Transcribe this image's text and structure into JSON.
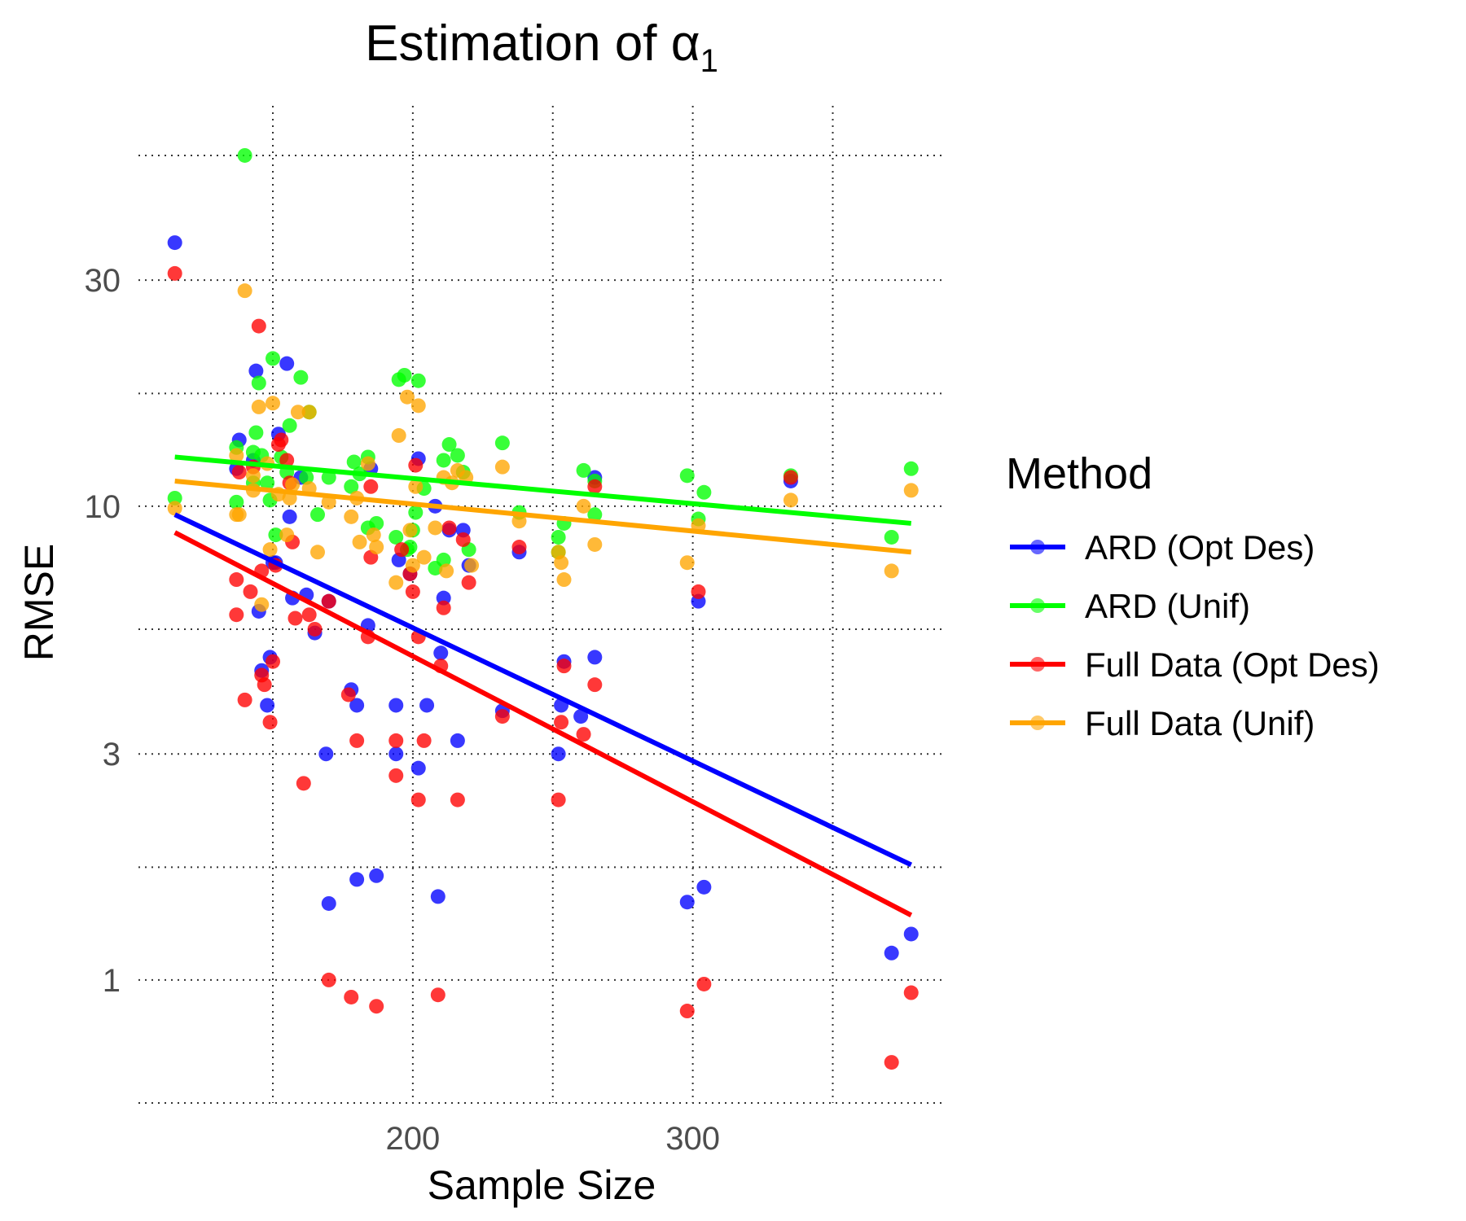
{
  "chart_data": {
    "type": "scatter",
    "title_text": "Estimation of ",
    "title_symbol": "α",
    "title_subscript": "1",
    "xlabel": "Sample Size",
    "ylabel": "RMSE",
    "xlim": [
      102,
      390
    ],
    "ylim": [
      0.55,
      70
    ],
    "y_scale": "log",
    "grid": true,
    "x_ticks": [
      200,
      300
    ],
    "x_tick_labels": [
      "200",
      "300"
    ],
    "x_minor_gridlines": [
      150,
      250,
      350
    ],
    "y_ticks": [
      1,
      3,
      10,
      30
    ],
    "y_tick_labels": [
      "1",
      "3",
      "10",
      "30"
    ],
    "y_minor_gridlines": [
      0.55,
      1.73,
      5.5,
      17.3,
      55
    ],
    "legend_title": "Method",
    "legend_position": "right",
    "series": [
      {
        "name": "ARD (Opt Des)",
        "color": "#0000ff",
        "trend": [
          [
            115,
            9.6
          ],
          [
            378,
            1.75
          ]
        ],
        "points": [
          [
            115,
            36
          ],
          [
            137,
            12.0
          ],
          [
            138,
            13.8
          ],
          [
            143,
            12.5
          ],
          [
            144,
            19.3
          ],
          [
            145,
            6.0
          ],
          [
            146,
            4.5
          ],
          [
            148,
            3.8
          ],
          [
            149,
            4.8
          ],
          [
            150,
            7.6
          ],
          [
            151,
            7.6
          ],
          [
            152,
            14.2
          ],
          [
            155,
            20.0
          ],
          [
            156,
            9.5
          ],
          [
            157,
            6.4
          ],
          [
            160,
            11.5
          ],
          [
            162,
            6.5
          ],
          [
            165,
            5.4
          ],
          [
            169,
            3.0
          ],
          [
            170,
            6.3
          ],
          [
            170,
            1.45
          ],
          [
            178,
            4.1
          ],
          [
            180,
            3.8
          ],
          [
            180,
            1.63
          ],
          [
            184,
            5.6
          ],
          [
            185,
            12.0
          ],
          [
            187,
            1.66
          ],
          [
            194,
            3.8
          ],
          [
            194,
            3.0
          ],
          [
            195,
            7.7
          ],
          [
            199,
            7.2
          ],
          [
            202,
            12.6
          ],
          [
            202,
            2.8
          ],
          [
            205,
            3.8
          ],
          [
            208,
            10.0
          ],
          [
            209,
            1.5
          ],
          [
            210,
            4.9
          ],
          [
            211,
            6.4
          ],
          [
            213,
            8.9
          ],
          [
            216,
            3.2
          ],
          [
            218,
            8.9
          ],
          [
            220,
            7.5
          ],
          [
            232,
            3.7
          ],
          [
            238,
            8.0
          ],
          [
            252,
            3.0
          ],
          [
            253,
            3.8
          ],
          [
            254,
            4.7
          ],
          [
            260,
            3.6
          ],
          [
            265,
            4.8
          ],
          [
            265,
            11.5
          ],
          [
            298,
            1.46
          ],
          [
            302,
            6.3
          ],
          [
            304,
            1.57
          ],
          [
            335,
            11.3
          ],
          [
            371,
            1.14
          ],
          [
            378,
            1.25
          ]
        ]
      },
      {
        "name": "ARD (Unif)",
        "color": "#00ff00",
        "trend": [
          [
            115,
            12.7
          ],
          [
            378,
            9.2
          ]
        ],
        "points": [
          [
            115,
            10.4
          ],
          [
            137,
            10.2
          ],
          [
            137,
            13.3
          ],
          [
            140,
            55
          ],
          [
            143,
            11.2
          ],
          [
            143,
            13.0
          ],
          [
            144,
            14.3
          ],
          [
            145,
            18.2
          ],
          [
            146,
            12.8
          ],
          [
            148,
            11.2
          ],
          [
            149,
            10.3
          ],
          [
            150,
            20.5
          ],
          [
            151,
            8.7
          ],
          [
            153,
            12.7
          ],
          [
            155,
            11.8
          ],
          [
            156,
            14.8
          ],
          [
            160,
            18.7
          ],
          [
            162,
            11.5
          ],
          [
            163,
            15.8
          ],
          [
            166,
            9.6
          ],
          [
            170,
            11.5
          ],
          [
            178,
            11.0
          ],
          [
            179,
            12.4
          ],
          [
            181,
            11.7
          ],
          [
            184,
            12.7
          ],
          [
            184,
            9.0
          ],
          [
            187,
            9.2
          ],
          [
            194,
            8.6
          ],
          [
            195,
            18.5
          ],
          [
            197,
            18.9
          ],
          [
            198,
            8.1
          ],
          [
            199,
            8.2
          ],
          [
            200,
            8.9
          ],
          [
            201,
            9.7
          ],
          [
            202,
            18.4
          ],
          [
            204,
            10.9
          ],
          [
            208,
            7.4
          ],
          [
            211,
            12.5
          ],
          [
            211,
            7.7
          ],
          [
            213,
            13.5
          ],
          [
            216,
            12.8
          ],
          [
            218,
            11.8
          ],
          [
            220,
            8.1
          ],
          [
            232,
            13.6
          ],
          [
            238,
            9.7
          ],
          [
            252,
            8.6
          ],
          [
            252,
            8.0
          ],
          [
            254,
            9.2
          ],
          [
            261,
            11.9
          ],
          [
            265,
            9.6
          ],
          [
            265,
            11.3
          ],
          [
            298,
            11.6
          ],
          [
            302,
            9.4
          ],
          [
            304,
            10.7
          ],
          [
            335,
            11.6
          ],
          [
            371,
            8.6
          ],
          [
            378,
            12.0
          ]
        ]
      },
      {
        "name": "Full Data (Opt Des)",
        "color": "#ff0000",
        "trend": [
          [
            115,
            8.8
          ],
          [
            378,
            1.37
          ]
        ],
        "points": [
          [
            115,
            31
          ],
          [
            137,
            7.0
          ],
          [
            137,
            5.9
          ],
          [
            138,
            11.8
          ],
          [
            140,
            3.9
          ],
          [
            142,
            6.6
          ],
          [
            143,
            12.1
          ],
          [
            145,
            24.0
          ],
          [
            146,
            4.4
          ],
          [
            146,
            7.3
          ],
          [
            147,
            4.2
          ],
          [
            149,
            3.5
          ],
          [
            150,
            4.7
          ],
          [
            151,
            7.5
          ],
          [
            152,
            13.5
          ],
          [
            153,
            13.8
          ],
          [
            155,
            12.5
          ],
          [
            156,
            11.2
          ],
          [
            157,
            8.4
          ],
          [
            158,
            5.8
          ],
          [
            161,
            2.6
          ],
          [
            163,
            5.9
          ],
          [
            165,
            5.5
          ],
          [
            170,
            6.3
          ],
          [
            170,
            1.0
          ],
          [
            177,
            4.0
          ],
          [
            178,
            0.92
          ],
          [
            180,
            3.2
          ],
          [
            184,
            5.3
          ],
          [
            185,
            7.8
          ],
          [
            185,
            11.0
          ],
          [
            187,
            0.88
          ],
          [
            194,
            3.2
          ],
          [
            194,
            2.7
          ],
          [
            196,
            8.1
          ],
          [
            199,
            7.2
          ],
          [
            200,
            6.6
          ],
          [
            201,
            12.2
          ],
          [
            202,
            2.4
          ],
          [
            202,
            5.3
          ],
          [
            204,
            3.2
          ],
          [
            209,
            0.93
          ],
          [
            210,
            4.6
          ],
          [
            211,
            6.1
          ],
          [
            213,
            9.0
          ],
          [
            216,
            2.4
          ],
          [
            218,
            8.5
          ],
          [
            220,
            6.9
          ],
          [
            232,
            3.6
          ],
          [
            238,
            8.2
          ],
          [
            252,
            2.4
          ],
          [
            253,
            3.5
          ],
          [
            254,
            4.6
          ],
          [
            261,
            3.3
          ],
          [
            265,
            4.2
          ],
          [
            265,
            11.0
          ],
          [
            298,
            0.86
          ],
          [
            302,
            6.6
          ],
          [
            304,
            0.98
          ],
          [
            335,
            11.5
          ],
          [
            371,
            0.67
          ],
          [
            378,
            0.94
          ]
        ]
      },
      {
        "name": "Full Data (Unif)",
        "color": "#ffa500",
        "trend": [
          [
            115,
            11.3
          ],
          [
            378,
            8.0
          ]
        ],
        "points": [
          [
            115,
            9.9
          ],
          [
            137,
            9.6
          ],
          [
            138,
            9.6
          ],
          [
            137,
            12.8
          ],
          [
            140,
            28.5
          ],
          [
            143,
            10.8
          ],
          [
            143,
            11.6
          ],
          [
            145,
            16.2
          ],
          [
            146,
            6.2
          ],
          [
            148,
            12.3
          ],
          [
            149,
            8.1
          ],
          [
            150,
            16.5
          ],
          [
            152,
            10.6
          ],
          [
            155,
            8.7
          ],
          [
            156,
            10.4
          ],
          [
            157,
            11.1
          ],
          [
            159,
            15.8
          ],
          [
            163,
            15.8
          ],
          [
            163,
            10.9
          ],
          [
            166,
            8.0
          ],
          [
            170,
            10.2
          ],
          [
            178,
            9.5
          ],
          [
            180,
            10.4
          ],
          [
            181,
            8.4
          ],
          [
            184,
            12.3
          ],
          [
            186,
            8.7
          ],
          [
            187,
            8.2
          ],
          [
            194,
            6.9
          ],
          [
            195,
            14.1
          ],
          [
            198,
            17.0
          ],
          [
            199,
            8.9
          ],
          [
            200,
            7.5
          ],
          [
            201,
            11.0
          ],
          [
            202,
            16.3
          ],
          [
            204,
            7.8
          ],
          [
            208,
            9.0
          ],
          [
            211,
            11.5
          ],
          [
            212,
            7.3
          ],
          [
            214,
            11.2
          ],
          [
            216,
            11.9
          ],
          [
            219,
            11.5
          ],
          [
            221,
            7.5
          ],
          [
            232,
            12.1
          ],
          [
            238,
            9.3
          ],
          [
            252,
            8.0
          ],
          [
            253,
            7.6
          ],
          [
            254,
            7.0
          ],
          [
            261,
            10.0
          ],
          [
            265,
            8.3
          ],
          [
            298,
            7.6
          ],
          [
            302,
            9.1
          ],
          [
            335,
            10.3
          ],
          [
            371,
            7.3
          ],
          [
            378,
            10.8
          ]
        ]
      }
    ]
  }
}
